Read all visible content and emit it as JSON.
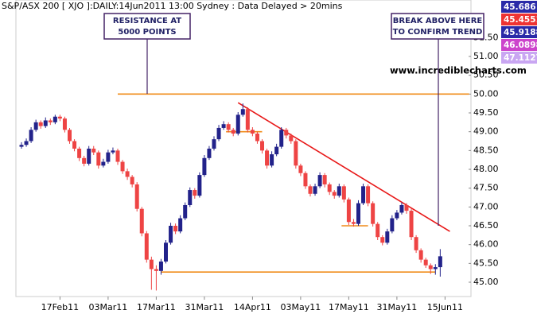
{
  "chart_data": {
    "type": "candlestick",
    "title": "S&P/ASX 200 [ XJO ]:DAILY:14Jun2011 13:00 Sydney : Data Delayed > 20mins",
    "watermark": "www.incrediblecharts.com",
    "up_color": "#22228a",
    "down_color": "#ee4444",
    "categories": [
      null,
      null,
      null,
      null,
      null,
      null,
      null,
      null,
      "17Feb11",
      null,
      null,
      null,
      null,
      null,
      null,
      null,
      null,
      null,
      "03Mar11",
      null,
      null,
      null,
      null,
      null,
      null,
      null,
      null,
      null,
      "17Mar11",
      null,
      null,
      null,
      null,
      null,
      null,
      null,
      null,
      null,
      "31Mar11",
      null,
      null,
      null,
      null,
      null,
      null,
      null,
      null,
      null,
      "14Apr11",
      null,
      null,
      null,
      null,
      null,
      null,
      null,
      null,
      null,
      "03May11",
      null,
      null,
      null,
      null,
      null,
      null,
      null,
      null,
      null,
      "17May11",
      null,
      null,
      null,
      null,
      null,
      null,
      null,
      null,
      null,
      "31May11",
      null,
      null,
      null,
      null,
      null,
      null,
      null,
      null,
      null,
      "15Jun11"
    ],
    "open": [
      48.6,
      48.65,
      48.75,
      49.05,
      49.25,
      49.15,
      49.3,
      49.25,
      49.4,
      49.35,
      49.05,
      48.75,
      48.55,
      48.3,
      48.15,
      48.55,
      48.45,
      48.1,
      48.2,
      48.45,
      48.5,
      48.2,
      47.95,
      47.8,
      47.6,
      46.95,
      46.3,
      45.6,
      45.35,
      45.3,
      45.55,
      46.05,
      46.5,
      46.35,
      46.7,
      47.05,
      47.45,
      47.3,
      47.85,
      48.3,
      48.55,
      48.8,
      49.1,
      49.2,
      49.05,
      48.95,
      49.45,
      49.6,
      49.05,
      48.95,
      48.75,
      48.5,
      48.1,
      48.4,
      48.6,
      49.05,
      48.9,
      48.75,
      48.1,
      47.9,
      47.55,
      47.35,
      47.55,
      47.85,
      47.6,
      47.4,
      47.3,
      47.55,
      47.2,
      46.6,
      46.55,
      47.1,
      47.55,
      47.1,
      46.55,
      46.2,
      46.05,
      46.35,
      46.7,
      46.85,
      47.05,
      46.9,
      46.2,
      45.85,
      45.6,
      45.45,
      45.35,
      45.4,
      null
    ],
    "high": [
      48.72,
      48.82,
      49.12,
      49.32,
      49.3,
      49.38,
      49.35,
      49.45,
      49.45,
      49.4,
      49.1,
      48.8,
      48.6,
      48.36,
      48.62,
      48.62,
      48.5,
      48.28,
      48.52,
      48.58,
      48.55,
      48.25,
      48.02,
      47.85,
      47.66,
      47.0,
      46.36,
      45.68,
      45.45,
      45.62,
      46.12,
      46.58,
      46.56,
      46.78,
      47.12,
      47.52,
      47.5,
      47.92,
      48.38,
      48.62,
      48.88,
      49.18,
      49.28,
      49.25,
      49.1,
      49.52,
      49.75,
      49.65,
      49.12,
      49.0,
      48.8,
      48.55,
      48.48,
      48.68,
      49.12,
      49.1,
      48.95,
      48.8,
      48.15,
      47.95,
      47.6,
      47.62,
      47.92,
      47.9,
      47.65,
      47.45,
      47.62,
      47.6,
      47.25,
      46.68,
      47.18,
      47.62,
      47.6,
      47.15,
      46.6,
      46.25,
      46.42,
      46.78,
      46.92,
      47.12,
      47.1,
      46.95,
      46.25,
      45.9,
      45.65,
      45.5,
      45.48,
      45.88,
      null
    ],
    "low": [
      48.55,
      48.6,
      48.7,
      49.0,
      49.08,
      49.1,
      49.18,
      49.2,
      49.28,
      48.98,
      48.68,
      48.48,
      48.22,
      48.08,
      48.1,
      48.38,
      48.02,
      48.05,
      48.15,
      48.4,
      48.12,
      47.88,
      47.72,
      47.52,
      46.88,
      46.22,
      45.52,
      44.8,
      44.78,
      45.2,
      45.5,
      46.0,
      46.28,
      46.3,
      46.65,
      47.0,
      47.22,
      47.25,
      47.8,
      48.25,
      48.5,
      48.75,
      49.05,
      48.98,
      48.88,
      48.9,
      49.4,
      48.98,
      48.88,
      48.68,
      48.42,
      48.02,
      48.05,
      48.35,
      48.55,
      48.82,
      48.68,
      48.02,
      47.82,
      47.48,
      47.28,
      47.3,
      47.5,
      47.52,
      47.32,
      47.22,
      47.25,
      47.12,
      46.52,
      46.48,
      46.5,
      47.05,
      47.02,
      46.48,
      46.12,
      45.98,
      46.0,
      46.3,
      46.65,
      46.8,
      46.82,
      46.12,
      45.78,
      45.52,
      45.38,
      45.22,
      45.2,
      45.15,
      null
    ],
    "close": [
      48.65,
      48.75,
      49.05,
      49.25,
      49.15,
      49.3,
      49.25,
      49.4,
      49.35,
      49.05,
      48.75,
      48.55,
      48.3,
      48.15,
      48.55,
      48.45,
      48.1,
      48.2,
      48.45,
      48.5,
      48.2,
      47.95,
      47.8,
      47.6,
      46.95,
      46.3,
      45.6,
      45.35,
      45.3,
      45.55,
      46.05,
      46.5,
      46.35,
      46.7,
      47.05,
      47.45,
      47.3,
      47.85,
      48.3,
      48.55,
      48.8,
      49.1,
      49.2,
      49.05,
      48.95,
      49.45,
      49.6,
      49.05,
      48.95,
      48.75,
      48.5,
      48.1,
      48.4,
      48.6,
      49.05,
      48.9,
      48.75,
      48.1,
      47.9,
      47.55,
      47.35,
      47.55,
      47.85,
      47.6,
      47.4,
      47.3,
      47.55,
      47.2,
      46.6,
      46.55,
      47.1,
      47.55,
      47.1,
      46.55,
      46.2,
      46.05,
      46.35,
      46.7,
      46.85,
      47.05,
      46.9,
      46.2,
      45.85,
      45.6,
      45.45,
      45.35,
      45.4,
      45.69,
      null
    ],
    "ylim": [
      44.62,
      52.5
    ],
    "yticks": [
      {
        "value": 45,
        "label": "45.00"
      },
      {
        "value": 45.5,
        "label": "45.50"
      },
      {
        "value": 46,
        "label": "46.00"
      },
      {
        "value": 46.5,
        "label": "46.50"
      },
      {
        "value": 47,
        "label": "47.00"
      },
      {
        "value": 47.5,
        "label": "47.50"
      },
      {
        "value": 48,
        "label": "48.00"
      },
      {
        "value": 48.5,
        "label": "48.50"
      },
      {
        "value": 49,
        "label": "49.00"
      },
      {
        "value": 49.5,
        "label": "49.50"
      },
      {
        "value": 50,
        "label": "50.00"
      },
      {
        "value": 50.5,
        "label": "50.50"
      },
      {
        "value": 51,
        "label": "51.00"
      },
      {
        "value": 51.5,
        "label": "51.50"
      }
    ],
    "lines": [
      {
        "color": "#f08c1a",
        "x": [
          20,
          93
        ],
        "y": [
          50.0,
          50.0
        ]
      },
      {
        "color": "#f08c1a",
        "x": [
          29,
          86
        ],
        "y": [
          45.27,
          45.27
        ]
      },
      {
        "color": "#f08c1a",
        "x": [
          42.5,
          50
        ],
        "y": [
          49.0,
          49.0
        ]
      },
      {
        "color": "#f08c1a",
        "x": [
          66.5,
          72
        ],
        "y": [
          46.5,
          46.5
        ]
      },
      {
        "color": "#e81818",
        "x": [
          45,
          89
        ],
        "y": [
          49.77,
          46.35
        ]
      }
    ],
    "annotations": [
      {
        "lines": [
          "RESISTANCE AT",
          "5000 POINTS"
        ]
      },
      {
        "lines": [
          "BREAK ABOVE HERE",
          "TO CONFIRM TREND"
        ]
      }
    ],
    "quote_boxes": [
      {
        "value": 45.686,
        "color": "#2a2aa8"
      },
      {
        "value": 45.4551,
        "color": "#ee3333"
      },
      {
        "value": 45.9188,
        "color": "#2a2aa8"
      },
      {
        "value": 46.0898,
        "color": "#cc44cc"
      },
      {
        "value": 47.1127,
        "color": "#c9a6f2"
      }
    ]
  }
}
